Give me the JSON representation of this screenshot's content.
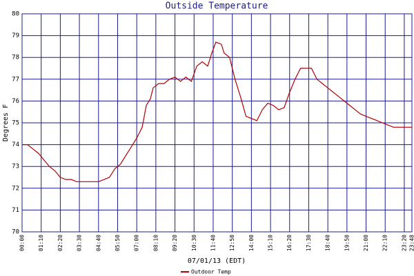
{
  "chart_data": {
    "type": "line",
    "title": "Outside Temperature",
    "x_label": "07/01/13 (EDT)",
    "y_label": "Degrees F",
    "x": [
      0,
      20,
      40,
      60,
      80,
      100,
      120,
      140,
      160,
      180,
      200,
      220,
      240,
      260,
      280,
      300,
      320,
      340,
      360,
      380,
      400,
      420,
      440,
      455,
      470,
      480,
      500,
      520,
      540,
      560,
      580,
      600,
      620,
      640,
      660,
      680,
      695,
      710,
      730,
      740,
      760,
      780,
      800,
      820,
      840,
      860,
      880,
      900,
      920,
      940,
      960,
      980,
      1000,
      1020,
      1040,
      1060,
      1080,
      1100,
      1120,
      1140,
      1160,
      1180,
      1200,
      1220,
      1240,
      1260,
      1280,
      1300,
      1320,
      1340,
      1360,
      1380,
      1400,
      1428
    ],
    "series": [
      {
        "name": "Outdoor Temp",
        "color": "#b00000",
        "values": [
          74.0,
          74.0,
          73.8,
          73.6,
          73.3,
          73.0,
          72.8,
          72.5,
          72.4,
          72.4,
          72.3,
          72.3,
          72.3,
          72.3,
          72.3,
          72.4,
          72.5,
          72.9,
          73.1,
          73.5,
          73.9,
          74.3,
          74.8,
          75.8,
          76.1,
          76.6,
          76.8,
          76.8,
          77.0,
          77.1,
          76.9,
          77.1,
          76.9,
          77.6,
          77.8,
          77.6,
          78.2,
          78.7,
          78.6,
          78.2,
          78.0,
          77.0,
          76.2,
          75.3,
          75.2,
          75.1,
          75.6,
          75.9,
          75.8,
          75.6,
          75.7,
          76.4,
          77.0,
          77.5,
          77.5,
          77.5,
          77.0,
          76.8,
          76.6,
          76.4,
          76.2,
          76.0,
          75.8,
          75.6,
          75.4,
          75.3,
          75.2,
          75.1,
          75.0,
          74.9,
          74.8,
          74.8,
          74.8,
          74.8
        ]
      }
    ],
    "xlim": [
      0,
      1428
    ],
    "xticks": [
      {
        "value": 0,
        "label": "00:00"
      },
      {
        "value": 70,
        "label": "01:10"
      },
      {
        "value": 140,
        "label": "02:20"
      },
      {
        "value": 210,
        "label": "03:30"
      },
      {
        "value": 280,
        "label": "04:40"
      },
      {
        "value": 350,
        "label": "05:50"
      },
      {
        "value": 420,
        "label": "07:00"
      },
      {
        "value": 490,
        "label": "08:10"
      },
      {
        "value": 560,
        "label": "09:20"
      },
      {
        "value": 630,
        "label": "10:30"
      },
      {
        "value": 700,
        "label": "11:40"
      },
      {
        "value": 770,
        "label": "12:50"
      },
      {
        "value": 840,
        "label": "14:00"
      },
      {
        "value": 910,
        "label": "15:10"
      },
      {
        "value": 980,
        "label": "16:20"
      },
      {
        "value": 1050,
        "label": "17:30"
      },
      {
        "value": 1120,
        "label": "18:40"
      },
      {
        "value": 1190,
        "label": "19:50"
      },
      {
        "value": 1260,
        "label": "21:00"
      },
      {
        "value": 1330,
        "label": "22:10"
      },
      {
        "value": 1400,
        "label": "23:20"
      },
      {
        "value": 1428,
        "label": "23:48"
      }
    ],
    "ylim": [
      70,
      80
    ],
    "yticks": [
      70,
      71,
      72,
      73,
      74,
      75,
      76,
      77,
      78,
      79,
      80
    ],
    "grid": true
  }
}
